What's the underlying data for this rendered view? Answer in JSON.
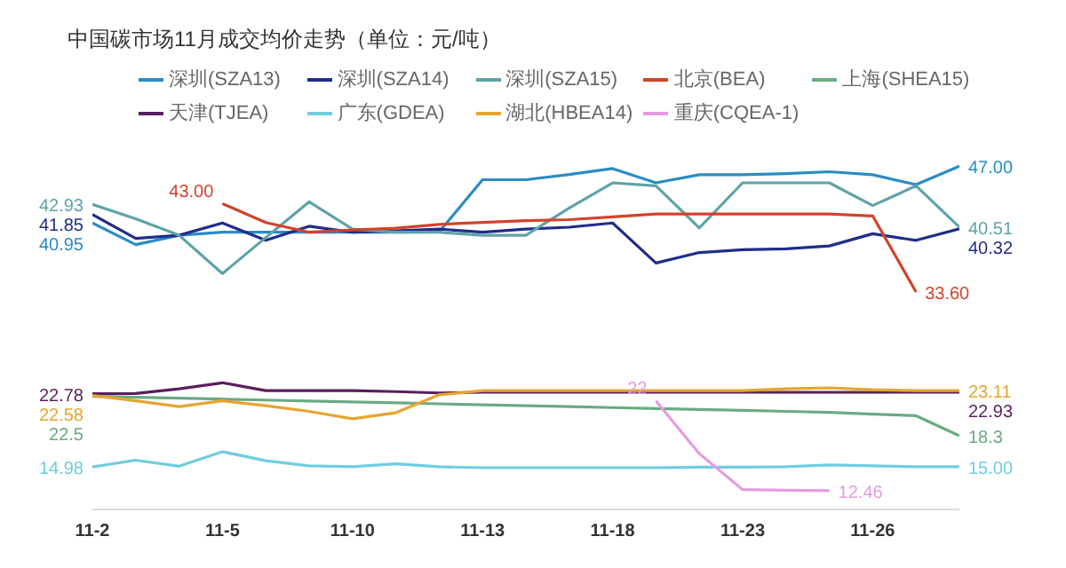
{
  "chart_data": {
    "type": "line",
    "title": "中国碳市场11月成交均价走势（单位：元/吨）",
    "categories": [
      "11-2",
      null,
      null,
      "11-5",
      null,
      null,
      "11-10",
      null,
      null,
      "11-13",
      null,
      null,
      "11-18",
      null,
      null,
      "11-23",
      null,
      null,
      "11-26",
      null,
      null
    ],
    "tick_labels": "x",
    "legend": "top",
    "marker": "none",
    "line_style": "solid",
    "series": [
      {
        "name": "深圳(SZA13)",
        "color": "#2a8cc4",
        "values": [
          40.95,
          38.65,
          39.64,
          39.96,
          39.96,
          39.96,
          39.96,
          39.96,
          40.0,
          45.55,
          45.55,
          46.1,
          46.74,
          45.22,
          46.08,
          46.08,
          46.2,
          46.4,
          46.08,
          45.03,
          47.0
        ],
        "value_labels": [
          "40.95",
          null,
          null,
          null,
          null,
          null,
          null,
          null,
          null,
          null,
          null,
          null,
          null,
          null,
          null,
          null,
          null,
          null,
          null,
          null,
          "47.00"
        ]
      },
      {
        "name": "深圳(SZA14)",
        "color": "#1f2d8a",
        "values": [
          41.85,
          39.3,
          39.64,
          40.95,
          39.1,
          40.6,
          39.96,
          40.1,
          40.3,
          39.96,
          40.3,
          40.5,
          40.95,
          36.68,
          37.8,
          38.1,
          38.2,
          38.5,
          39.8,
          39.1,
          40.32
        ],
        "value_labels": [
          "41.85",
          null,
          null,
          null,
          null,
          null,
          null,
          null,
          null,
          null,
          null,
          null,
          null,
          null,
          null,
          null,
          null,
          null,
          null,
          null,
          "40.32"
        ]
      },
      {
        "name": "深圳(SZA15)",
        "color": "#5fa3a8",
        "values": [
          42.93,
          41.4,
          39.64,
          35.56,
          39.4,
          43.2,
          40.3,
          39.96,
          39.96,
          39.64,
          39.64,
          42.55,
          45.22,
          44.9,
          40.42,
          45.22,
          45.22,
          45.22,
          42.8,
          44.9,
          40.51
        ],
        "value_labels": [
          "42.93",
          null,
          null,
          null,
          null,
          null,
          null,
          null,
          null,
          null,
          null,
          null,
          null,
          null,
          null,
          null,
          null,
          null,
          null,
          null,
          "40.51"
        ]
      },
      {
        "name": "北京(BEA)",
        "color": "#d2432a",
        "values": [
          null,
          null,
          null,
          43.0,
          41.0,
          39.96,
          40.2,
          40.4,
          40.8,
          41.0,
          41.2,
          41.3,
          41.6,
          41.9,
          41.9,
          41.9,
          41.9,
          41.9,
          41.7,
          33.6,
          null
        ],
        "value_labels": [
          null,
          null,
          null,
          "43.00",
          null,
          null,
          null,
          null,
          null,
          null,
          null,
          null,
          null,
          null,
          null,
          null,
          null,
          null,
          null,
          "33.60",
          null
        ]
      },
      {
        "name": "上海(SHEA15)",
        "color": "#6aab82",
        "values": [
          22.5,
          22.4,
          22.3,
          22.2,
          22.1,
          22.0,
          21.9,
          21.8,
          21.7,
          21.6,
          21.5,
          21.4,
          21.3,
          21.2,
          21.1,
          21.0,
          20.9,
          20.8,
          20.6,
          20.43,
          18.3
        ],
        "value_labels": [
          "22.5",
          null,
          null,
          null,
          null,
          null,
          null,
          null,
          null,
          null,
          null,
          null,
          null,
          null,
          null,
          null,
          null,
          null,
          null,
          null,
          "18.3"
        ]
      },
      {
        "name": "天津(TJEA)",
        "color": "#5a1e5e",
        "values": [
          22.78,
          22.8,
          23.3,
          23.94,
          23.11,
          23.11,
          23.11,
          23.0,
          22.86,
          22.93,
          22.93,
          22.93,
          22.93,
          22.93,
          22.93,
          22.93,
          22.93,
          22.93,
          22.93,
          22.93,
          22.93
        ],
        "value_labels": [
          "22.78",
          null,
          null,
          null,
          null,
          null,
          null,
          null,
          null,
          null,
          null,
          null,
          null,
          null,
          null,
          null,
          null,
          null,
          null,
          null,
          "22.93"
        ]
      },
      {
        "name": "广东(GDEA)",
        "color": "#6fcde0",
        "values": [
          14.98,
          15.7,
          15.06,
          16.6,
          15.64,
          15.1,
          15.0,
          15.32,
          15.0,
          14.9,
          14.9,
          14.9,
          14.9,
          14.9,
          14.95,
          14.95,
          15.0,
          15.2,
          15.1,
          15.0,
          15.0
        ],
        "value_labels": [
          "14.98",
          null,
          null,
          null,
          null,
          null,
          null,
          null,
          null,
          null,
          null,
          null,
          null,
          null,
          null,
          null,
          null,
          null,
          null,
          null,
          "15.00"
        ]
      },
      {
        "name": "湖北(HBEA14)",
        "color": "#e6a530",
        "values": [
          22.58,
          22.02,
          21.4,
          22.02,
          21.5,
          20.9,
          20.1,
          20.75,
          22.66,
          23.11,
          23.11,
          23.11,
          23.11,
          23.11,
          23.11,
          23.11,
          23.3,
          23.4,
          23.2,
          23.11,
          23.11
        ],
        "value_labels": [
          "22.58",
          null,
          null,
          null,
          null,
          null,
          null,
          null,
          null,
          null,
          null,
          null,
          null,
          null,
          null,
          null,
          null,
          null,
          null,
          null,
          "23.11"
        ]
      },
      {
        "name": "重庆(CQEA-1)",
        "color": "#e59be0",
        "values": [
          null,
          null,
          null,
          null,
          null,
          null,
          null,
          null,
          null,
          null,
          null,
          null,
          null,
          22.0,
          16.4,
          12.57,
          12.5,
          12.46,
          null,
          null,
          null
        ],
        "value_labels": [
          null,
          null,
          null,
          null,
          null,
          null,
          null,
          null,
          null,
          null,
          null,
          null,
          null,
          "22",
          null,
          null,
          null,
          "12.46",
          null,
          null,
          null
        ]
      }
    ]
  }
}
